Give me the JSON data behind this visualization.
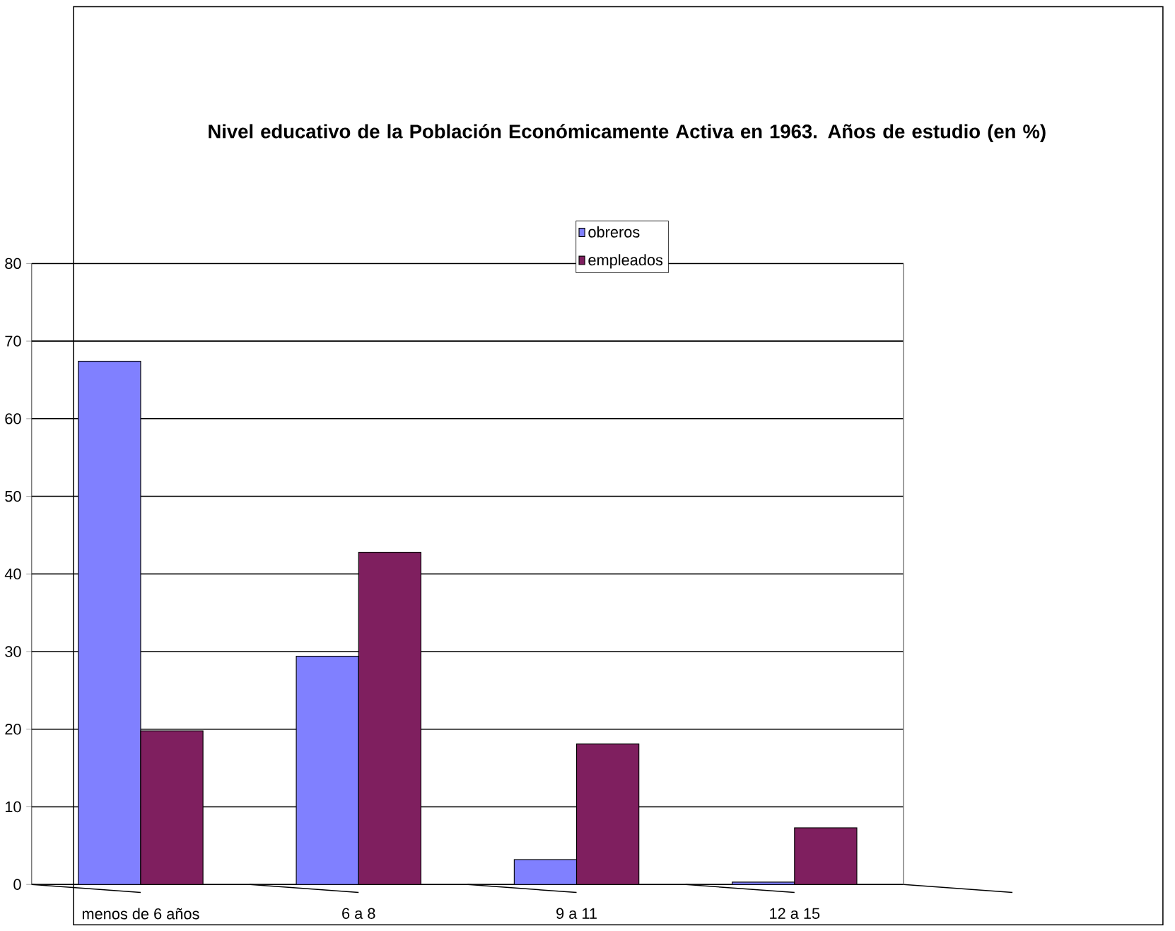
{
  "chart_data": {
    "type": "bar",
    "title": "Nivel educativo de la Población Económicamente Activa en 1963. Años de estudio (en %)",
    "categories": [
      "menos de 6 años",
      "6 a 8",
      "9 a 11",
      "12 a 15"
    ],
    "series": [
      {
        "name": "obreros",
        "color": "#8080ff",
        "values": [
          67.4,
          29.4,
          3.2,
          0.3
        ]
      },
      {
        "name": "empleados",
        "color": "#7f1f5f",
        "values": [
          19.8,
          42.8,
          18.1,
          7.3
        ]
      }
    ],
    "ylim": [
      0,
      80
    ],
    "yticks": [
      0,
      10,
      20,
      30,
      40,
      50,
      60,
      70,
      80
    ],
    "grid": "y",
    "legend": "top right"
  }
}
